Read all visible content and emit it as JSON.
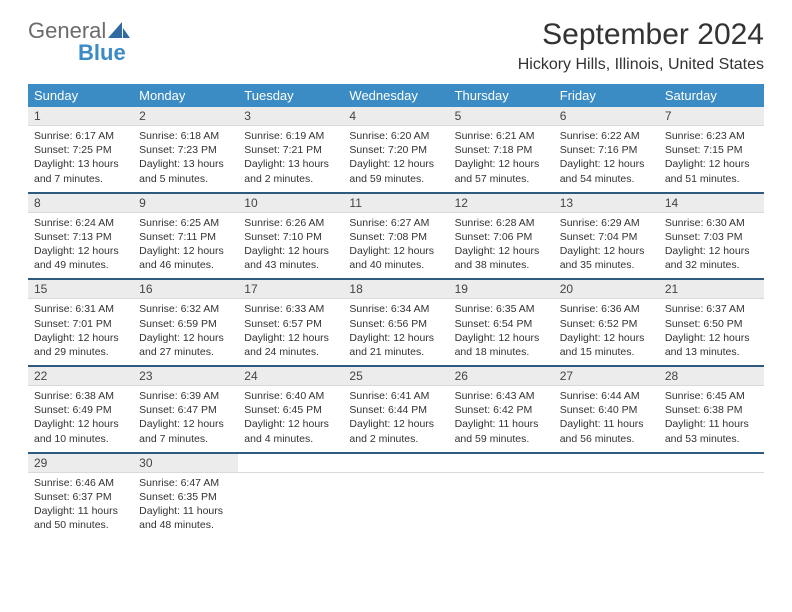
{
  "brand": {
    "part1": "General",
    "part2": "Blue"
  },
  "title": "September 2024",
  "location": "Hickory Hills, Illinois, United States",
  "colors": {
    "header_bg": "#3b8bc4",
    "header_text": "#ffffff",
    "daynum_bg": "#ececec",
    "sep": "#2f5a80",
    "text": "#333333"
  },
  "day_headers": [
    "Sunday",
    "Monday",
    "Tuesday",
    "Wednesday",
    "Thursday",
    "Friday",
    "Saturday"
  ],
  "weeks": [
    [
      {
        "n": "1",
        "sr": "6:17 AM",
        "ss": "7:25 PM",
        "dl": "13 hours and 7 minutes."
      },
      {
        "n": "2",
        "sr": "6:18 AM",
        "ss": "7:23 PM",
        "dl": "13 hours and 5 minutes."
      },
      {
        "n": "3",
        "sr": "6:19 AM",
        "ss": "7:21 PM",
        "dl": "13 hours and 2 minutes."
      },
      {
        "n": "4",
        "sr": "6:20 AM",
        "ss": "7:20 PM",
        "dl": "12 hours and 59 minutes."
      },
      {
        "n": "5",
        "sr": "6:21 AM",
        "ss": "7:18 PM",
        "dl": "12 hours and 57 minutes."
      },
      {
        "n": "6",
        "sr": "6:22 AM",
        "ss": "7:16 PM",
        "dl": "12 hours and 54 minutes."
      },
      {
        "n": "7",
        "sr": "6:23 AM",
        "ss": "7:15 PM",
        "dl": "12 hours and 51 minutes."
      }
    ],
    [
      {
        "n": "8",
        "sr": "6:24 AM",
        "ss": "7:13 PM",
        "dl": "12 hours and 49 minutes."
      },
      {
        "n": "9",
        "sr": "6:25 AM",
        "ss": "7:11 PM",
        "dl": "12 hours and 46 minutes."
      },
      {
        "n": "10",
        "sr": "6:26 AM",
        "ss": "7:10 PM",
        "dl": "12 hours and 43 minutes."
      },
      {
        "n": "11",
        "sr": "6:27 AM",
        "ss": "7:08 PM",
        "dl": "12 hours and 40 minutes."
      },
      {
        "n": "12",
        "sr": "6:28 AM",
        "ss": "7:06 PM",
        "dl": "12 hours and 38 minutes."
      },
      {
        "n": "13",
        "sr": "6:29 AM",
        "ss": "7:04 PM",
        "dl": "12 hours and 35 minutes."
      },
      {
        "n": "14",
        "sr": "6:30 AM",
        "ss": "7:03 PM",
        "dl": "12 hours and 32 minutes."
      }
    ],
    [
      {
        "n": "15",
        "sr": "6:31 AM",
        "ss": "7:01 PM",
        "dl": "12 hours and 29 minutes."
      },
      {
        "n": "16",
        "sr": "6:32 AM",
        "ss": "6:59 PM",
        "dl": "12 hours and 27 minutes."
      },
      {
        "n": "17",
        "sr": "6:33 AM",
        "ss": "6:57 PM",
        "dl": "12 hours and 24 minutes."
      },
      {
        "n": "18",
        "sr": "6:34 AM",
        "ss": "6:56 PM",
        "dl": "12 hours and 21 minutes."
      },
      {
        "n": "19",
        "sr": "6:35 AM",
        "ss": "6:54 PM",
        "dl": "12 hours and 18 minutes."
      },
      {
        "n": "20",
        "sr": "6:36 AM",
        "ss": "6:52 PM",
        "dl": "12 hours and 15 minutes."
      },
      {
        "n": "21",
        "sr": "6:37 AM",
        "ss": "6:50 PM",
        "dl": "12 hours and 13 minutes."
      }
    ],
    [
      {
        "n": "22",
        "sr": "6:38 AM",
        "ss": "6:49 PM",
        "dl": "12 hours and 10 minutes."
      },
      {
        "n": "23",
        "sr": "6:39 AM",
        "ss": "6:47 PM",
        "dl": "12 hours and 7 minutes."
      },
      {
        "n": "24",
        "sr": "6:40 AM",
        "ss": "6:45 PM",
        "dl": "12 hours and 4 minutes."
      },
      {
        "n": "25",
        "sr": "6:41 AM",
        "ss": "6:44 PM",
        "dl": "12 hours and 2 minutes."
      },
      {
        "n": "26",
        "sr": "6:43 AM",
        "ss": "6:42 PM",
        "dl": "11 hours and 59 minutes."
      },
      {
        "n": "27",
        "sr": "6:44 AM",
        "ss": "6:40 PM",
        "dl": "11 hours and 56 minutes."
      },
      {
        "n": "28",
        "sr": "6:45 AM",
        "ss": "6:38 PM",
        "dl": "11 hours and 53 minutes."
      }
    ],
    [
      {
        "n": "29",
        "sr": "6:46 AM",
        "ss": "6:37 PM",
        "dl": "11 hours and 50 minutes."
      },
      {
        "n": "30",
        "sr": "6:47 AM",
        "ss": "6:35 PM",
        "dl": "11 hours and 48 minutes."
      },
      null,
      null,
      null,
      null,
      null
    ]
  ],
  "labels": {
    "sunrise": "Sunrise: ",
    "sunset": "Sunset: ",
    "daylight": "Daylight: "
  }
}
